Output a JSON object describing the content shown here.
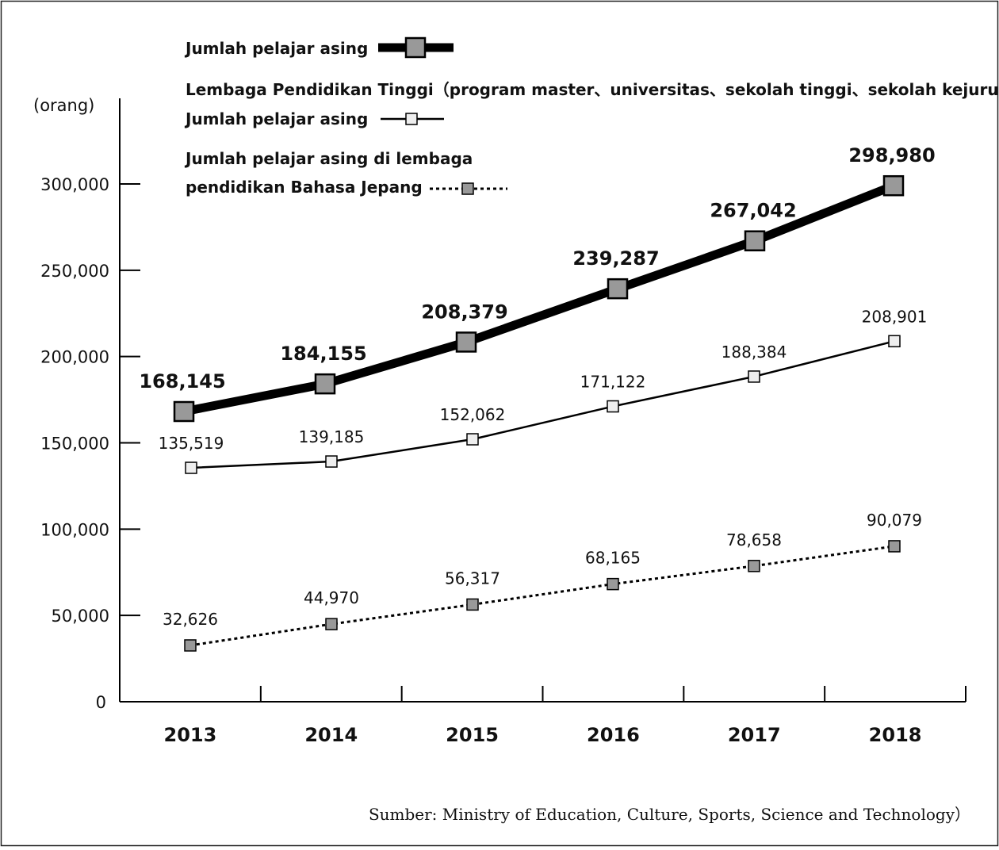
{
  "chart_data": {
    "type": "line",
    "categories": [
      "2013",
      "2014",
      "2015",
      "2016",
      "2017",
      "2018"
    ],
    "yunit": "(orang)",
    "ylim": [
      0,
      300000
    ],
    "yticks": [
      0,
      50000,
      100000,
      150000,
      200000,
      250000,
      300000
    ],
    "ytick_labels": [
      "0",
      "50,000",
      "100,000",
      "150,000",
      "200,000",
      "250,000",
      "300,000"
    ],
    "grid": false,
    "series": [
      {
        "name": "Jumlah pelajar asing",
        "values": [
          168145,
          184155,
          208379,
          239287,
          267042,
          298980
        ],
        "labels": [
          "168,145",
          "184,155",
          "208,379",
          "239,287",
          "267,042",
          "298,980"
        ]
      },
      {
        "name": "Lembaga Pendidikan Tinggi（program master、universitas、sekolah tinggi、sekolah kejuruan dsb）Jumlah pelajar asing",
        "values": [
          135519,
          139185,
          152062,
          171122,
          188384,
          208901
        ],
        "labels": [
          "135,519",
          "139,185",
          "152,062",
          "171,122",
          "188,384",
          "208,901"
        ]
      },
      {
        "name": "Jumlah pelajar asing di lembaga pendidikan Bahasa Jepang",
        "values": [
          32626,
          44970,
          56317,
          68165,
          78658,
          90079
        ],
        "labels": [
          "32,626",
          "44,970",
          "56,317",
          "68,165",
          "78,658",
          "90,079"
        ]
      }
    ],
    "legend": {
      "placement": "top-left",
      "total_label": "Jumlah pelajar asing",
      "higher_ed_line1": "Lembaga Pendidikan Tinggi（program master、universitas、sekolah tinggi、sekolah kejuruan dsb）",
      "higher_ed_line2": "Jumlah pelajar asing",
      "language_line1": "Jumlah pelajar asing di lembaga",
      "language_line2": "pendidikan Bahasa Jepang"
    },
    "source": "Sumber: Ministry of Education, Culture, Sports, Science and Technology）",
    "colors": {
      "marker_fill_dark": "#999999",
      "marker_fill_light": "#eeeeee",
      "line": "#000000"
    }
  }
}
